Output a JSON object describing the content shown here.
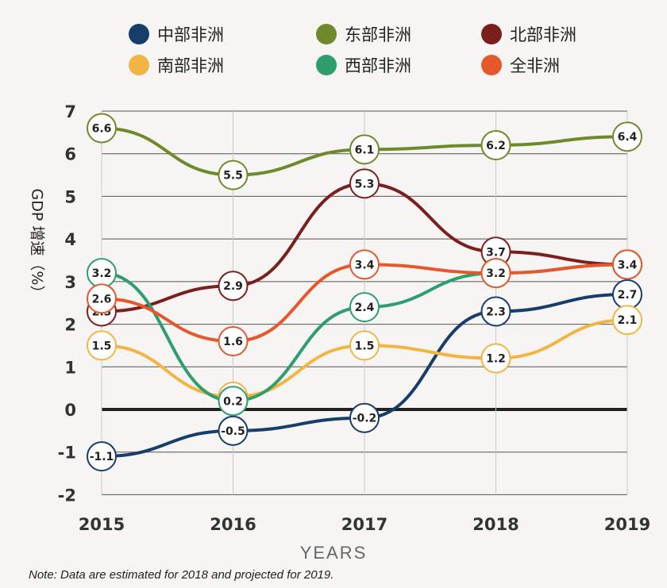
{
  "chart_data": {
    "type": "line",
    "categories": [
      "2015",
      "2016",
      "2017",
      "2018",
      "2019"
    ],
    "ylim": [
      -2,
      7
    ],
    "yticks": [
      "-2",
      "-1",
      "0",
      "1",
      "2",
      "3",
      "4",
      "5",
      "6",
      "7"
    ],
    "ylabel": "GDP 增速（%）",
    "xlabel": "YEARS",
    "grid": true,
    "legend_position": "top",
    "series": [
      {
        "name": "中部非洲",
        "color": "#173d6b",
        "values": [
          -1.1,
          -0.5,
          -0.2,
          2.3,
          2.7
        ],
        "labels": [
          "-1.1",
          "-0.5",
          "-0.2",
          "2.3",
          "2.7"
        ]
      },
      {
        "name": "东部非洲",
        "color": "#6f8a2c",
        "values": [
          6.6,
          5.5,
          6.1,
          6.2,
          6.4
        ],
        "labels": [
          "6.6",
          "5.5",
          "6.1",
          "6.2",
          "6.4"
        ]
      },
      {
        "name": "北部非洲",
        "color": "#7b1f1d",
        "values": [
          2.3,
          2.9,
          5.3,
          3.7,
          3.4
        ],
        "labels": [
          "2.3",
          "2.9",
          "5.3",
          "3.7",
          "3.4"
        ]
      },
      {
        "name": "南部非洲",
        "color": "#f2b544",
        "values": [
          1.5,
          0.3,
          1.5,
          1.2,
          2.1
        ],
        "labels": [
          "1.5",
          "0.3",
          "1.5",
          "1.2",
          "2.1"
        ]
      },
      {
        "name": "西部非洲",
        "color": "#2e9e6f",
        "values": [
          3.2,
          0.2,
          2.4,
          3.2,
          3.4
        ],
        "labels": [
          "3.2",
          "0.2",
          "2.4",
          "3.2",
          "3.4"
        ]
      },
      {
        "name": "全非洲",
        "color": "#e6582b",
        "values": [
          2.6,
          1.6,
          3.4,
          3.2,
          3.4
        ],
        "labels": [
          "2.6",
          "1.6",
          "3.4",
          "3.2",
          "3.4"
        ]
      }
    ],
    "note": "Note: Data are estimated for 2018 and projected for 2019."
  }
}
